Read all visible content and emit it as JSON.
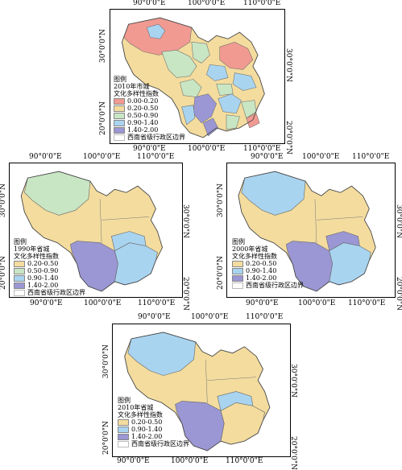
{
  "axes": {
    "lon": [
      "90°0'0\"E",
      "100°0'0\"E",
      "110°0'0\"E"
    ],
    "lat": [
      "30°0'0\"N",
      "20°0'0\"N"
    ]
  },
  "colors": {
    "red": "#f09a92",
    "yellow": "#f3dc9e",
    "green": "#c9e6c4",
    "blue": "#a9d4f0",
    "purple": "#9b97d4"
  },
  "maps": [
    {
      "id": "2010-city",
      "legend": {
        "heading": "图例",
        "title_line1": "2010年市城",
        "title_line2": "文化多样性指数",
        "classes": [
          {
            "label": "0.00-0.20",
            "color": "#f09a92"
          },
          {
            "label": "0.20-0.50",
            "color": "#f3dc9e"
          },
          {
            "label": "0.50-0.90",
            "color": "#c9e6c4"
          },
          {
            "label": "0.90-1.40",
            "color": "#a9d4f0"
          },
          {
            "label": "1.40-2.00",
            "color": "#9b97d4"
          }
        ],
        "boundary": "西南省级行政区边界"
      }
    },
    {
      "id": "1990-province",
      "legend": {
        "heading": "图例",
        "title_line1": "1990年省城",
        "title_line2": "文化多样性指数",
        "classes": [
          {
            "label": "0.20-0.50",
            "color": "#f3dc9e"
          },
          {
            "label": "0.50-0.90",
            "color": "#c9e6c4"
          },
          {
            "label": "0.90-1.40",
            "color": "#a9d4f0"
          },
          {
            "label": "1.40-2.00",
            "color": "#9b97d4"
          }
        ],
        "boundary": "西南省级行政区边界"
      }
    },
    {
      "id": "2000-province",
      "legend": {
        "heading": "图例",
        "title_line1": "2000年省城",
        "title_line2": "文化多样性指数",
        "classes": [
          {
            "label": "0.20-0.50",
            "color": "#f3dc9e"
          },
          {
            "label": "0.90-1.40",
            "color": "#a9d4f0"
          },
          {
            "label": "1.40-2.00",
            "color": "#9b97d4"
          }
        ],
        "boundary": "西南省级行政区边界"
      }
    },
    {
      "id": "2010-province",
      "legend": {
        "heading": "图例",
        "title_line1": "2010年省城",
        "title_line2": "文化多样性指数",
        "classes": [
          {
            "label": "0.20-0.50",
            "color": "#f3dc9e"
          },
          {
            "label": "0.90-1.40",
            "color": "#a9d4f0"
          },
          {
            "label": "1.40-2.00",
            "color": "#9b97d4"
          }
        ],
        "boundary": "西南省级行政区边界"
      }
    }
  ]
}
